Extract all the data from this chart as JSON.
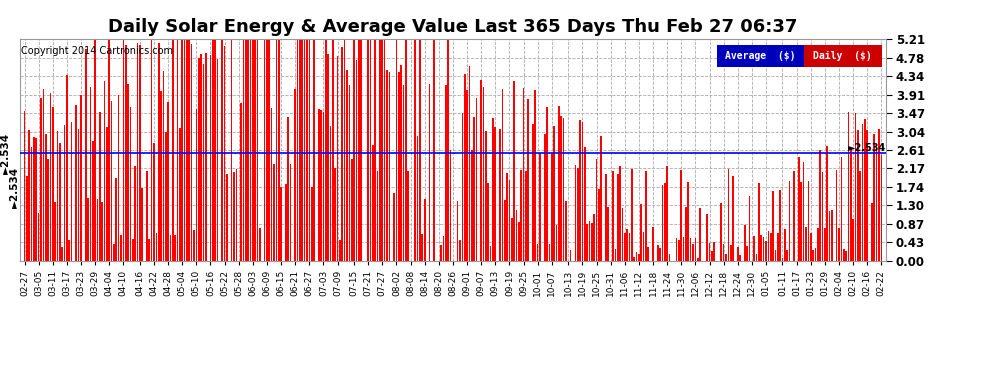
{
  "title": "Daily Solar Energy & Average Value Last 365 Days Thu Feb 27 06:37",
  "copyright": "Copyright 2014 Cartronics.com",
  "avg_value": 2.534,
  "avg_label": "Average  ($)",
  "daily_label": "Daily  ($)",
  "ymin": 0.0,
  "ymax": 5.21,
  "yticks": [
    0.0,
    0.43,
    0.87,
    1.3,
    1.74,
    2.17,
    2.61,
    3.04,
    3.47,
    3.91,
    4.34,
    4.78,
    5.21
  ],
  "bar_color": "#ff0000",
  "avg_line_color": "#0000ff",
  "background_color": "#ffffff",
  "grid_color": "#aaaaaa",
  "title_fontsize": 13,
  "legend_avg_bg": "#0000bb",
  "legend_daily_bg": "#cc0000",
  "legend_text_color": "#ffffff",
  "n_bars": 365,
  "x_labels": [
    "02-27",
    "03-05",
    "03-11",
    "03-17",
    "03-23",
    "03-29",
    "04-04",
    "04-10",
    "04-16",
    "04-22",
    "04-28",
    "05-04",
    "05-10",
    "05-16",
    "05-22",
    "05-28",
    "06-03",
    "06-09",
    "06-15",
    "06-21",
    "06-27",
    "07-03",
    "07-09",
    "07-15",
    "07-21",
    "07-27",
    "08-02",
    "08-08",
    "08-14",
    "08-20",
    "08-26",
    "09-01",
    "09-07",
    "09-13",
    "09-19",
    "09-25",
    "10-01",
    "10-07",
    "10-13",
    "10-19",
    "10-25",
    "10-31",
    "11-06",
    "11-12",
    "11-18",
    "11-24",
    "11-30",
    "12-06",
    "12-12",
    "12-18",
    "12-24",
    "12-30",
    "01-05",
    "01-11",
    "01-17",
    "01-23",
    "01-29",
    "02-04",
    "02-10",
    "02-16",
    "02-22"
  ],
  "seed": 42
}
